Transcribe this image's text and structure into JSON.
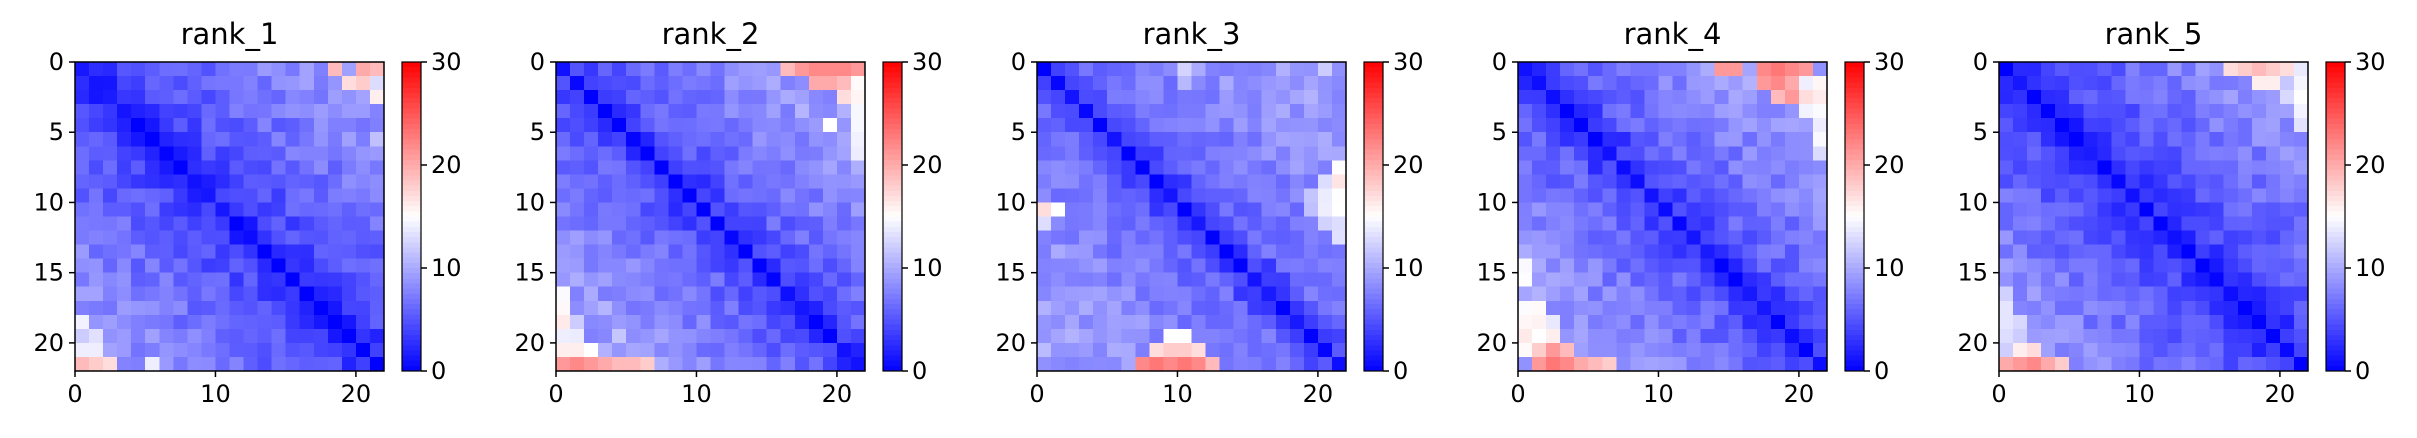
{
  "figure": {
    "panels": [
      {
        "title": "rank_1",
        "x_ticks": [
          "0",
          "10",
          "20"
        ],
        "y_ticks": [
          "0",
          "5",
          "10",
          "15",
          "20"
        ],
        "colorbar_ticks": [
          "0",
          "10",
          "20",
          "30"
        ]
      },
      {
        "title": "rank_2",
        "x_ticks": [
          "0",
          "10",
          "20"
        ],
        "y_ticks": [
          "0",
          "5",
          "10",
          "15",
          "20"
        ],
        "colorbar_ticks": [
          "0",
          "10",
          "20",
          "30"
        ]
      },
      {
        "title": "rank_3",
        "x_ticks": [
          "0",
          "10",
          "20"
        ],
        "y_ticks": [
          "0",
          "5",
          "10",
          "15",
          "20"
        ],
        "colorbar_ticks": [
          "0",
          "10",
          "20",
          "30"
        ]
      },
      {
        "title": "rank_4",
        "x_ticks": [
          "0",
          "10",
          "20"
        ],
        "y_ticks": [
          "0",
          "5",
          "10",
          "15",
          "20"
        ],
        "colorbar_ticks": [
          "0",
          "10",
          "20",
          "30"
        ]
      },
      {
        "title": "rank_5",
        "x_ticks": [
          "0",
          "10",
          "20"
        ],
        "y_ticks": [
          "0",
          "5",
          "10",
          "15",
          "20"
        ],
        "colorbar_ticks": [
          "0",
          "10",
          "20",
          "30"
        ]
      }
    ]
  },
  "chart_data": [
    {
      "type": "heatmap",
      "title": "rank_1",
      "n": 22,
      "xlim": [
        0,
        22
      ],
      "ylim": [
        22,
        0
      ],
      "vmin": 0,
      "vmax": 30,
      "colormap": "bwr",
      "colors": {
        "low": "#0000ff",
        "mid": "#ffffff",
        "high": "#ff0000"
      },
      "xticks": [
        0,
        10,
        20
      ],
      "yticks": [
        0,
        5,
        10,
        15,
        20
      ],
      "colorbar_ticks": [
        0,
        10,
        20,
        30
      ],
      "description_of_values": [],
      "hotspots": [
        [
          0,
          18,
          19
        ],
        [
          0,
          20,
          20
        ],
        [
          0,
          21,
          19
        ],
        [
          1,
          19,
          17
        ],
        [
          1,
          20,
          18
        ],
        [
          2,
          21,
          16
        ],
        [
          21,
          0,
          19
        ],
        [
          21,
          1,
          18
        ],
        [
          21,
          2,
          17
        ],
        [
          20,
          0,
          14
        ],
        [
          20,
          1,
          14
        ],
        [
          19,
          0,
          12
        ],
        [
          21,
          5,
          14
        ]
      ],
      "note_levels": {
        "diagonal": 0,
        "near_diag": 4,
        "far": 8
      }
    },
    {
      "type": "heatmap",
      "title": "rank_2",
      "n": 22,
      "xlim": [
        0,
        22
      ],
      "ylim": [
        22,
        0
      ],
      "vmin": 0,
      "vmax": 30,
      "colormap": "bwr",
      "colors": {
        "low": "#0000ff",
        "mid": "#ffffff",
        "high": "#ff0000"
      },
      "xticks": [
        0,
        10,
        20
      ],
      "yticks": [
        0,
        5,
        10,
        15,
        20
      ],
      "colorbar_ticks": [
        0,
        10,
        20,
        30
      ],
      "hotspots": [
        [
          0,
          16,
          19
        ],
        [
          0,
          17,
          21
        ],
        [
          0,
          18,
          22
        ],
        [
          0,
          19,
          22
        ],
        [
          0,
          20,
          22
        ],
        [
          0,
          21,
          21
        ],
        [
          1,
          18,
          20
        ],
        [
          1,
          19,
          20
        ],
        [
          1,
          20,
          19
        ],
        [
          2,
          20,
          17
        ],
        [
          4,
          19,
          15
        ],
        [
          21,
          0,
          21
        ],
        [
          21,
          1,
          22
        ],
        [
          21,
          2,
          21
        ],
        [
          21,
          3,
          20
        ],
        [
          21,
          4,
          19
        ],
        [
          21,
          5,
          19
        ],
        [
          21,
          6,
          18
        ],
        [
          20,
          0,
          16
        ],
        [
          20,
          1,
          16
        ],
        [
          20,
          2,
          15
        ],
        [
          19,
          0,
          14
        ],
        [
          18,
          1,
          12
        ]
      ],
      "note_levels": {
        "diagonal": 0,
        "near_diag": 5,
        "far": 9
      }
    },
    {
      "type": "heatmap",
      "title": "rank_3",
      "n": 22,
      "xlim": [
        0,
        22
      ],
      "ylim": [
        22,
        0
      ],
      "vmin": 0,
      "vmax": 30,
      "colormap": "bwr",
      "colors": {
        "low": "#0000ff",
        "mid": "#ffffff",
        "high": "#ff0000"
      },
      "xticks": [
        0,
        10,
        20
      ],
      "yticks": [
        0,
        5,
        10,
        15,
        20
      ],
      "colorbar_ticks": [
        0,
        10,
        20,
        30
      ],
      "hotspots": [
        [
          21,
          7,
          22
        ],
        [
          21,
          8,
          23
        ],
        [
          21,
          9,
          22
        ],
        [
          21,
          10,
          23
        ],
        [
          21,
          11,
          22
        ],
        [
          21,
          12,
          19
        ],
        [
          20,
          8,
          17
        ],
        [
          20,
          9,
          18
        ],
        [
          20,
          10,
          18
        ],
        [
          20,
          11,
          17
        ],
        [
          19,
          9,
          15
        ],
        [
          19,
          10,
          15
        ],
        [
          10,
          0,
          17
        ],
        [
          10,
          1,
          15
        ],
        [
          11,
          0,
          13
        ],
        [
          10,
          21,
          15
        ],
        [
          10,
          20,
          14
        ],
        [
          11,
          21,
          13
        ],
        [
          0,
          20,
          12
        ]
      ],
      "note_levels": {
        "diagonal": 0,
        "near_diag": 6,
        "far": 9
      }
    },
    {
      "type": "heatmap",
      "title": "rank_4",
      "n": 22,
      "xlim": [
        0,
        22
      ],
      "ylim": [
        22,
        0
      ],
      "vmin": 0,
      "vmax": 30,
      "colormap": "bwr",
      "colors": {
        "low": "#0000ff",
        "mid": "#ffffff",
        "high": "#ff0000"
      },
      "xticks": [
        0,
        10,
        20
      ],
      "yticks": [
        0,
        5,
        10,
        15,
        20
      ],
      "colorbar_ticks": [
        0,
        10,
        20,
        30
      ],
      "hotspots": [
        [
          0,
          14,
          21
        ],
        [
          0,
          15,
          21
        ],
        [
          0,
          17,
          22
        ],
        [
          0,
          18,
          23
        ],
        [
          0,
          19,
          22
        ],
        [
          0,
          20,
          21
        ],
        [
          1,
          17,
          21
        ],
        [
          1,
          18,
          22
        ],
        [
          1,
          19,
          20
        ],
        [
          2,
          18,
          19
        ],
        [
          2,
          19,
          21
        ],
        [
          2,
          20,
          17
        ],
        [
          21,
          1,
          21
        ],
        [
          21,
          2,
          23
        ],
        [
          21,
          3,
          22
        ],
        [
          21,
          4,
          20
        ],
        [
          21,
          5,
          19
        ],
        [
          21,
          6,
          18
        ],
        [
          20,
          1,
          18
        ],
        [
          20,
          2,
          21
        ],
        [
          20,
          3,
          19
        ],
        [
          19,
          1,
          15
        ],
        [
          19,
          2,
          16
        ]
      ],
      "note_levels": {
        "diagonal": 0,
        "near_diag": 5,
        "far": 9
      }
    },
    {
      "type": "heatmap",
      "title": "rank_5",
      "n": 22,
      "xlim": [
        0,
        22
      ],
      "ylim": [
        22,
        0
      ],
      "vmin": 0,
      "vmax": 30,
      "colormap": "bwr",
      "colors": {
        "low": "#0000ff",
        "mid": "#ffffff",
        "high": "#ff0000"
      },
      "xticks": [
        0,
        10,
        20
      ],
      "yticks": [
        0,
        5,
        10,
        15,
        20
      ],
      "colorbar_ticks": [
        0,
        10,
        20,
        30
      ],
      "hotspots": [
        [
          0,
          16,
          17
        ],
        [
          0,
          17,
          18
        ],
        [
          0,
          18,
          19
        ],
        [
          0,
          19,
          18
        ],
        [
          0,
          20,
          17
        ],
        [
          1,
          18,
          16
        ],
        [
          1,
          19,
          16
        ],
        [
          21,
          0,
          20
        ],
        [
          21,
          1,
          21
        ],
        [
          21,
          2,
          22
        ],
        [
          21,
          3,
          20
        ],
        [
          21,
          4,
          18
        ],
        [
          20,
          1,
          16
        ],
        [
          20,
          2,
          17
        ],
        [
          19,
          0,
          13
        ]
      ],
      "note_levels": {
        "diagonal": 0,
        "near_diag": 4,
        "far": 8
      }
    }
  ]
}
